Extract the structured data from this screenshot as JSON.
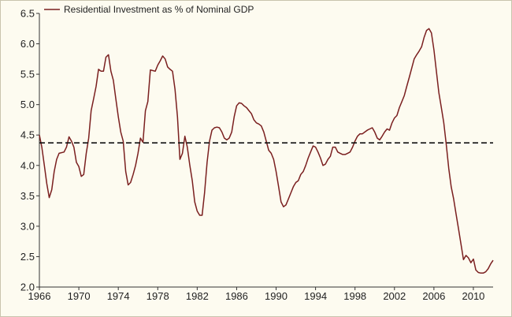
{
  "chart_data": {
    "type": "line",
    "title": "",
    "xlabel": "",
    "ylabel": "",
    "xlim": [
      1966,
      2012
    ],
    "ylim": [
      2.0,
      6.5
    ],
    "grid": false,
    "legend_position": "top-left",
    "x_ticks": [
      1966,
      1970,
      1974,
      1978,
      1982,
      1986,
      1990,
      1994,
      1998,
      2002,
      2006,
      2010
    ],
    "x_tick_labels": [
      "1966",
      "1970",
      "1974",
      "1978",
      "1982",
      "1986",
      "1990",
      "1994",
      "1998",
      "2002",
      "2006",
      "2010"
    ],
    "y_ticks": [
      2.0,
      2.5,
      3.0,
      3.5,
      4.0,
      4.5,
      5.0,
      5.5,
      6.0,
      6.5
    ],
    "y_tick_labels": [
      "2.0",
      "2.5",
      "3.0",
      "3.5",
      "4.0",
      "4.5",
      "5.0",
      "5.5",
      "6.0",
      "6.5"
    ],
    "series": [
      {
        "name": "Residential Investment as % of Nominal GDP",
        "color": "#7a1f1f",
        "style": "solid",
        "points": [
          [
            1966.0,
            4.5
          ],
          [
            1966.25,
            4.3
          ],
          [
            1966.5,
            4.0
          ],
          [
            1966.75,
            3.7
          ],
          [
            1967.0,
            3.47
          ],
          [
            1967.25,
            3.6
          ],
          [
            1967.5,
            3.9
          ],
          [
            1967.75,
            4.1
          ],
          [
            1968.0,
            4.2
          ],
          [
            1968.5,
            4.22
          ],
          [
            1968.75,
            4.3
          ],
          [
            1969.0,
            4.47
          ],
          [
            1969.25,
            4.4
          ],
          [
            1969.5,
            4.3
          ],
          [
            1969.75,
            4.05
          ],
          [
            1970.0,
            3.98
          ],
          [
            1970.25,
            3.82
          ],
          [
            1970.5,
            3.85
          ],
          [
            1970.75,
            4.2
          ],
          [
            1971.0,
            4.45
          ],
          [
            1971.25,
            4.9
          ],
          [
            1971.5,
            5.1
          ],
          [
            1971.75,
            5.3
          ],
          [
            1972.0,
            5.58
          ],
          [
            1972.25,
            5.55
          ],
          [
            1972.5,
            5.55
          ],
          [
            1972.75,
            5.78
          ],
          [
            1973.0,
            5.82
          ],
          [
            1973.25,
            5.55
          ],
          [
            1973.5,
            5.4
          ],
          [
            1973.75,
            5.1
          ],
          [
            1974.0,
            4.8
          ],
          [
            1974.25,
            4.55
          ],
          [
            1974.5,
            4.4
          ],
          [
            1974.75,
            3.9
          ],
          [
            1975.0,
            3.68
          ],
          [
            1975.25,
            3.72
          ],
          [
            1975.5,
            3.85
          ],
          [
            1975.75,
            4.0
          ],
          [
            1976.0,
            4.2
          ],
          [
            1976.25,
            4.45
          ],
          [
            1976.5,
            4.38
          ],
          [
            1976.75,
            4.9
          ],
          [
            1977.0,
            5.05
          ],
          [
            1977.25,
            5.57
          ],
          [
            1977.5,
            5.56
          ],
          [
            1977.75,
            5.55
          ],
          [
            1978.0,
            5.65
          ],
          [
            1978.25,
            5.72
          ],
          [
            1978.5,
            5.8
          ],
          [
            1978.75,
            5.75
          ],
          [
            1979.0,
            5.62
          ],
          [
            1979.25,
            5.58
          ],
          [
            1979.5,
            5.55
          ],
          [
            1979.75,
            5.25
          ],
          [
            1980.0,
            4.8
          ],
          [
            1980.25,
            4.1
          ],
          [
            1980.5,
            4.2
          ],
          [
            1980.75,
            4.48
          ],
          [
            1981.0,
            4.3
          ],
          [
            1981.25,
            4.0
          ],
          [
            1981.5,
            3.75
          ],
          [
            1981.75,
            3.4
          ],
          [
            1982.0,
            3.25
          ],
          [
            1982.25,
            3.18
          ],
          [
            1982.5,
            3.18
          ],
          [
            1982.75,
            3.55
          ],
          [
            1983.0,
            4.05
          ],
          [
            1983.25,
            4.4
          ],
          [
            1983.5,
            4.58
          ],
          [
            1983.75,
            4.62
          ],
          [
            1984.0,
            4.63
          ],
          [
            1984.25,
            4.62
          ],
          [
            1984.5,
            4.55
          ],
          [
            1984.75,
            4.45
          ],
          [
            1985.0,
            4.42
          ],
          [
            1985.25,
            4.45
          ],
          [
            1985.5,
            4.55
          ],
          [
            1985.75,
            4.8
          ],
          [
            1986.0,
            4.98
          ],
          [
            1986.25,
            5.03
          ],
          [
            1986.5,
            5.02
          ],
          [
            1986.75,
            4.98
          ],
          [
            1987.0,
            4.95
          ],
          [
            1987.25,
            4.9
          ],
          [
            1987.5,
            4.85
          ],
          [
            1987.75,
            4.75
          ],
          [
            1988.0,
            4.7
          ],
          [
            1988.25,
            4.68
          ],
          [
            1988.5,
            4.65
          ],
          [
            1988.75,
            4.55
          ],
          [
            1989.0,
            4.4
          ],
          [
            1989.25,
            4.25
          ],
          [
            1989.5,
            4.2
          ],
          [
            1989.75,
            4.1
          ],
          [
            1990.0,
            3.9
          ],
          [
            1990.25,
            3.65
          ],
          [
            1990.5,
            3.4
          ],
          [
            1990.75,
            3.32
          ],
          [
            1991.0,
            3.35
          ],
          [
            1991.25,
            3.45
          ],
          [
            1991.5,
            3.55
          ],
          [
            1991.75,
            3.65
          ],
          [
            1992.0,
            3.72
          ],
          [
            1992.25,
            3.75
          ],
          [
            1992.5,
            3.85
          ],
          [
            1992.75,
            3.9
          ],
          [
            1993.0,
            4.0
          ],
          [
            1993.25,
            4.12
          ],
          [
            1993.5,
            4.22
          ],
          [
            1993.75,
            4.32
          ],
          [
            1994.0,
            4.3
          ],
          [
            1994.25,
            4.22
          ],
          [
            1994.5,
            4.12
          ],
          [
            1994.75,
            4.0
          ],
          [
            1995.0,
            4.02
          ],
          [
            1995.25,
            4.1
          ],
          [
            1995.5,
            4.15
          ],
          [
            1995.75,
            4.3
          ],
          [
            1996.0,
            4.3
          ],
          [
            1996.25,
            4.22
          ],
          [
            1996.5,
            4.2
          ],
          [
            1996.75,
            4.18
          ],
          [
            1997.0,
            4.18
          ],
          [
            1997.25,
            4.2
          ],
          [
            1997.5,
            4.22
          ],
          [
            1997.75,
            4.3
          ],
          [
            1998.0,
            4.4
          ],
          [
            1998.25,
            4.48
          ],
          [
            1998.5,
            4.52
          ],
          [
            1998.75,
            4.52
          ],
          [
            1999.0,
            4.55
          ],
          [
            1999.25,
            4.58
          ],
          [
            1999.5,
            4.6
          ],
          [
            1999.75,
            4.62
          ],
          [
            2000.0,
            4.55
          ],
          [
            2000.25,
            4.45
          ],
          [
            2000.5,
            4.42
          ],
          [
            2000.75,
            4.48
          ],
          [
            2001.0,
            4.55
          ],
          [
            2001.25,
            4.6
          ],
          [
            2001.5,
            4.58
          ],
          [
            2001.75,
            4.7
          ],
          [
            2002.0,
            4.78
          ],
          [
            2002.25,
            4.82
          ],
          [
            2002.5,
            4.95
          ],
          [
            2002.75,
            5.05
          ],
          [
            2003.0,
            5.15
          ],
          [
            2003.25,
            5.3
          ],
          [
            2003.5,
            5.45
          ],
          [
            2003.75,
            5.6
          ],
          [
            2004.0,
            5.75
          ],
          [
            2004.25,
            5.82
          ],
          [
            2004.5,
            5.88
          ],
          [
            2004.75,
            5.95
          ],
          [
            2005.0,
            6.1
          ],
          [
            2005.25,
            6.22
          ],
          [
            2005.5,
            6.25
          ],
          [
            2005.75,
            6.18
          ],
          [
            2006.0,
            5.9
          ],
          [
            2006.25,
            5.55
          ],
          [
            2006.5,
            5.2
          ],
          [
            2006.75,
            4.95
          ],
          [
            2007.0,
            4.7
          ],
          [
            2007.25,
            4.35
          ],
          [
            2007.5,
            3.95
          ],
          [
            2007.75,
            3.65
          ],
          [
            2008.0,
            3.45
          ],
          [
            2008.25,
            3.2
          ],
          [
            2008.5,
            2.95
          ],
          [
            2008.75,
            2.7
          ],
          [
            2009.0,
            2.45
          ],
          [
            2009.25,
            2.52
          ],
          [
            2009.5,
            2.48
          ],
          [
            2009.75,
            2.4
          ],
          [
            2010.0,
            2.46
          ],
          [
            2010.25,
            2.28
          ],
          [
            2010.5,
            2.24
          ],
          [
            2010.75,
            2.23
          ],
          [
            2011.0,
            2.23
          ],
          [
            2011.25,
            2.25
          ],
          [
            2011.5,
            2.3
          ],
          [
            2011.75,
            2.38
          ],
          [
            2012.0,
            2.44
          ]
        ]
      },
      {
        "name": "",
        "color": "#111111",
        "style": "dashed",
        "points": [
          [
            1966.0,
            4.37
          ],
          [
            2012.0,
            4.37
          ]
        ]
      }
    ]
  },
  "legend": {
    "label": "Residential Investment as % of Nominal GDP"
  }
}
